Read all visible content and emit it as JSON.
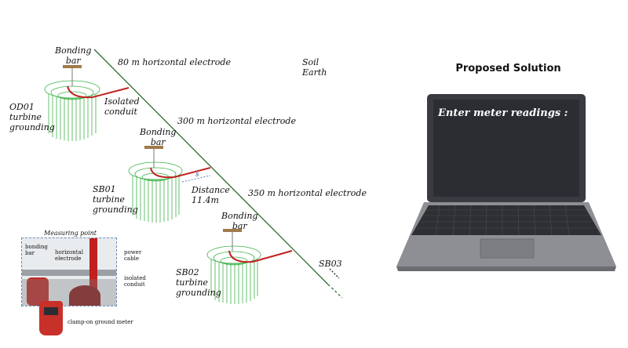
{
  "diagram": {
    "electrodes": {
      "e80": "80 m horizontal electrode",
      "e300": "300 m horizontal electrode",
      "e350": "350 m horizontal electrode"
    },
    "soil": [
      "Soil",
      "Earth"
    ],
    "od01": {
      "bar": [
        "Bonding",
        "bar"
      ],
      "name": [
        "OD01",
        "turbine",
        "grounding"
      ],
      "conduit": [
        "Isolated",
        "conduit"
      ]
    },
    "sb01": {
      "bar": [
        "Bonding",
        "bar"
      ],
      "name": [
        "SB01",
        "turbine",
        "grounding"
      ],
      "distance": [
        "Distance",
        "11.4m"
      ],
      "s_label": "s"
    },
    "sb02": {
      "bar": [
        "Bonding",
        "bar"
      ],
      "name": [
        "SB02",
        "turbine",
        "grounding"
      ]
    },
    "sb03": "SB03",
    "measuring": {
      "title": "Measuring point",
      "bonding_bar": [
        "bonding",
        "bar"
      ],
      "horizontal_electrode": [
        "horizontal",
        "electrode"
      ],
      "power_cable": [
        "power",
        "cable"
      ],
      "isolated_conduit": [
        "isolated",
        "conduit"
      ],
      "meter": "clamp-on ground meter"
    }
  },
  "panel": {
    "title": "Proposed Solution",
    "screen_prompt": "Enter meter readings :"
  },
  "colors": {
    "electrode_green": "#3db34a",
    "cable_red": "#c0201e",
    "bar_brown": "#a07a4a",
    "screen": "#2b2d33"
  }
}
